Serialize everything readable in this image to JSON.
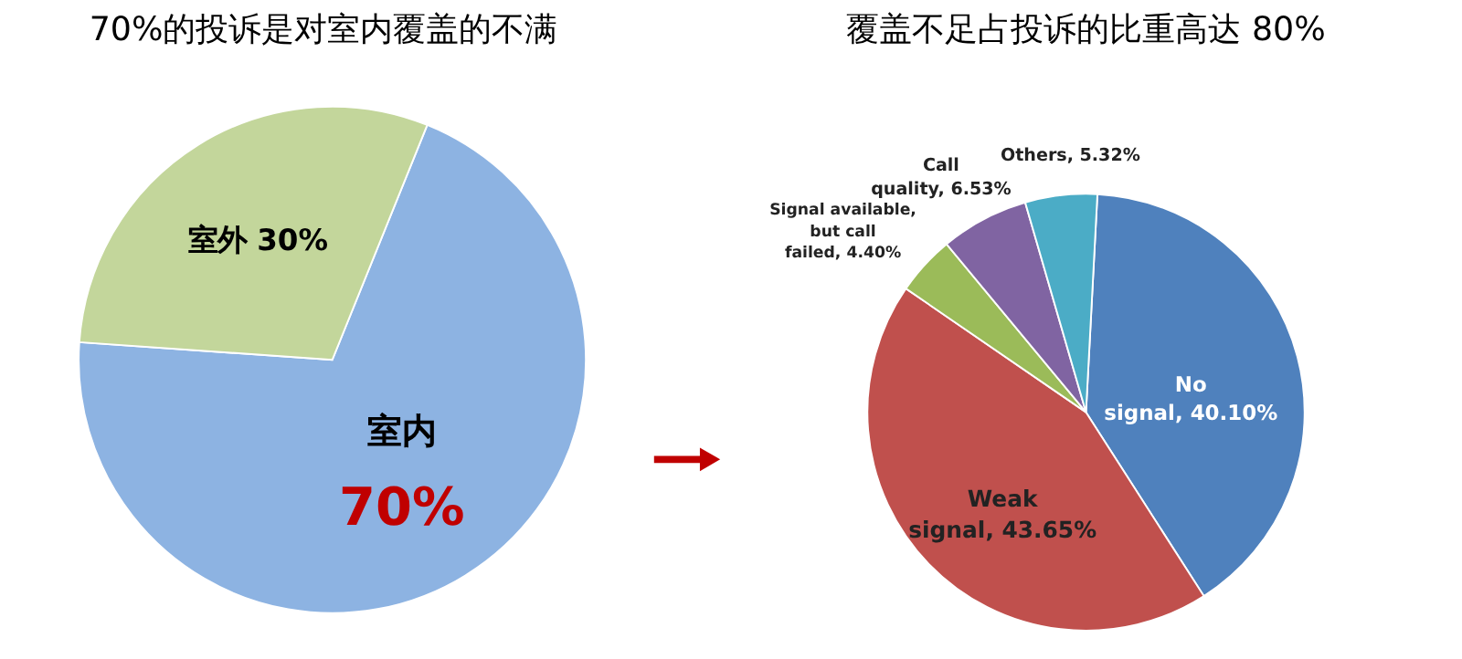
{
  "chart_data": [
    {
      "type": "pie",
      "title": "70%的投诉是对室内覆盖的不满",
      "categories": [
        "室内",
        "室外"
      ],
      "values": [
        70,
        30
      ],
      "colors": [
        "#8db3e2",
        "#c3d69b"
      ],
      "value_labels": [
        "70%",
        "30%"
      ],
      "legend": false
    },
    {
      "type": "pie",
      "title": "覆盖不足占投诉的比重高达 80%",
      "categories": [
        "No signal",
        "Weak signal",
        "Signal available, but call failed",
        "Call quality",
        "Others"
      ],
      "values": [
        40.1,
        43.65,
        4.4,
        6.53,
        5.32
      ],
      "colors": [
        "#4f81bd",
        "#c0504d",
        "#9bbb59",
        "#8064a2",
        "#4bacc6"
      ],
      "value_labels": [
        "40.10%",
        "43.65%",
        "4.40%",
        "6.53%",
        "5.32%"
      ],
      "legend": false
    }
  ]
}
